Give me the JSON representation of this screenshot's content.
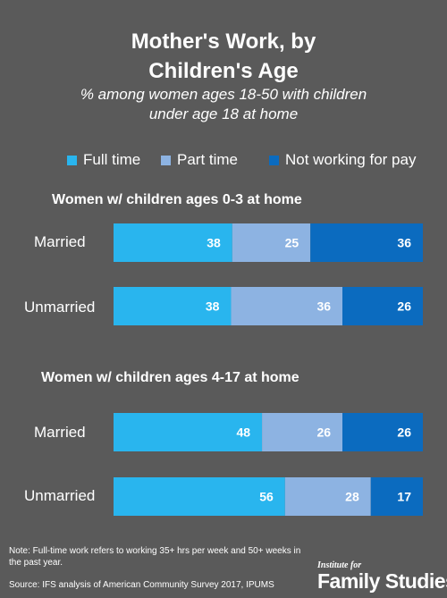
{
  "title_line1": "Mother's Work, by",
  "title_line2": "Children's Age",
  "subtitle_line1": "% among women ages 18-50 with children",
  "subtitle_line2": "under age 18 at home",
  "legend": [
    {
      "label": "Full time",
      "color": "#29b5ee"
    },
    {
      "label": "Part time",
      "color": "#8db3e2"
    },
    {
      "label": "Not working for pay",
      "color": "#0b6bbf"
    }
  ],
  "chart_data": [
    {
      "type": "bar",
      "stacked": true,
      "orientation": "horizontal",
      "title": "Women w/ children ages 0-3 at home",
      "categories": [
        "Married",
        "Unmarried"
      ],
      "series": [
        {
          "name": "Full time",
          "values": [
            38,
            38
          ]
        },
        {
          "name": "Part time",
          "values": [
            25,
            36
          ]
        },
        {
          "name": "Not working for pay",
          "values": [
            36,
            26
          ]
        }
      ]
    },
    {
      "type": "bar",
      "stacked": true,
      "orientation": "horizontal",
      "title": "Women w/ children ages 4-17 at home",
      "categories": [
        "Married",
        "Unmarried"
      ],
      "series": [
        {
          "name": "Full time",
          "values": [
            48,
            56
          ]
        },
        {
          "name": "Part time",
          "values": [
            26,
            28
          ]
        },
        {
          "name": "Not working for pay",
          "values": [
            26,
            17
          ]
        }
      ]
    }
  ],
  "note": "Note: Full-time work refers to working 35+ hrs per week and 50+ weeks in the past year.",
  "source": "Source: IFS analysis of American Community Survey 2017, IPUMS",
  "logo_small": "Institute for",
  "logo_big": "Family Studies"
}
